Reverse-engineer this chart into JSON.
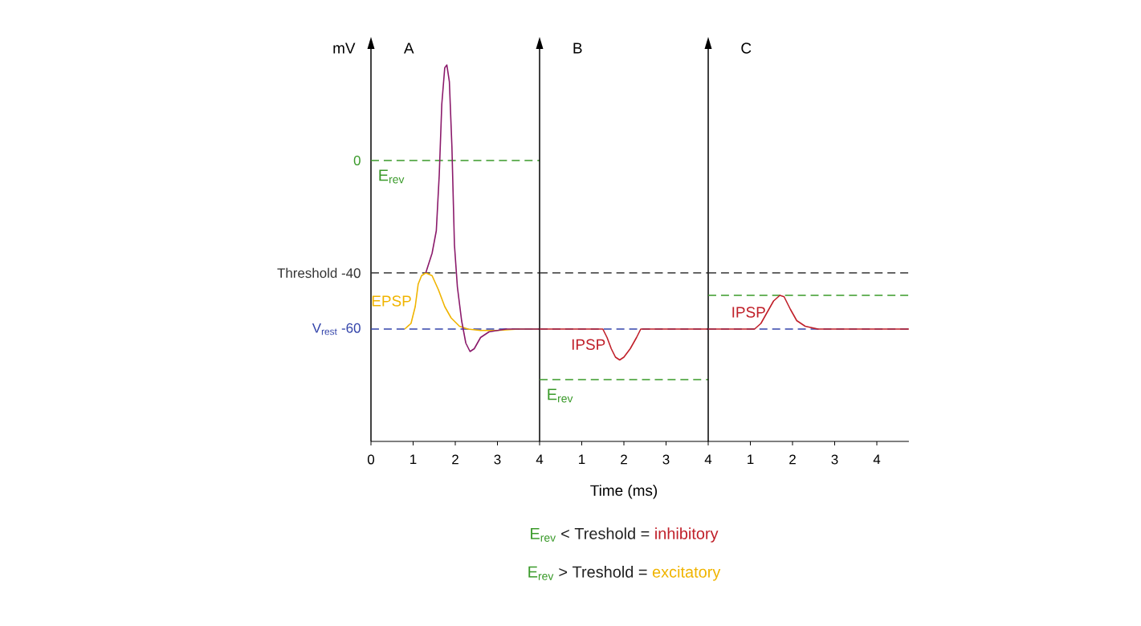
{
  "chart_data": [
    {
      "type": "line",
      "title": "A",
      "ylabel": "mV",
      "marker": "none",
      "xlim": [
        0,
        4
      ],
      "ylim": [
        -100,
        40
      ],
      "xticks": [
        0,
        1,
        2,
        3,
        4
      ],
      "yticks": [
        {
          "value": 0,
          "label": "0"
        },
        {
          "value": -40,
          "label": "Threshold -40"
        },
        {
          "value": -60,
          "label": "V$_{rest}$ -60"
        }
      ],
      "series": [
        {
          "name": "EPSP",
          "color": "#f0b400",
          "x": [
            0.8,
            0.95,
            1.05,
            1.12,
            1.2,
            1.3,
            1.45,
            1.6,
            1.75,
            1.9,
            2.1,
            2.3,
            2.6,
            3,
            3.5,
            4
          ],
          "values": [
            -60,
            -58,
            -52,
            -44,
            -41,
            -40,
            -41,
            -46,
            -52,
            -56,
            -59,
            -60,
            -60.5,
            -60.5,
            -60,
            -60
          ]
        },
        {
          "color": "#8b1a6b",
          "x": [
            1.3,
            1.45,
            1.55,
            1.62,
            1.68,
            1.75,
            1.8,
            1.86,
            1.92,
            1.98,
            2.05,
            2.15,
            2.25,
            2.35,
            2.45,
            2.6,
            2.8,
            3.2,
            3.6,
            4
          ],
          "values": [
            -40,
            -33,
            -25,
            -5,
            20,
            33,
            34,
            28,
            5,
            -30,
            -45,
            -57,
            -65,
            -68,
            -67,
            -63,
            -61,
            -60,
            -60,
            -60
          ]
        }
      ],
      "ref_lines": [
        {
          "axis": "y",
          "value": 0,
          "label": "E$_{rev}$",
          "color": "#3a9a2a",
          "line_style": "dashed"
        },
        {
          "axis": "y",
          "value": -40,
          "color": "#333333",
          "line_style": "dashed"
        },
        {
          "axis": "y",
          "value": -60,
          "color": "#3344aa",
          "line_style": "dashed"
        }
      ]
    },
    {
      "type": "line",
      "title": "B",
      "xlabel": "Time (ms)",
      "marker": "none",
      "xlim": [
        0,
        4
      ],
      "ylim": [
        -100,
        40
      ],
      "xticks": [
        1,
        2,
        3,
        4
      ],
      "tick_labels": "x",
      "series": [
        {
          "name": "IPSP",
          "color": "#c0202a",
          "x": [
            0,
            1.5,
            1.6,
            1.7,
            1.8,
            1.9,
            2.0,
            2.15,
            2.3,
            2.4,
            4
          ],
          "values": [
            -60,
            -60,
            -63,
            -67,
            -70,
            -71,
            -70,
            -67,
            -63,
            -60,
            -60
          ]
        }
      ],
      "ref_lines": [
        {
          "axis": "y",
          "value": -40,
          "color": "#333333",
          "line_style": "dashed"
        },
        {
          "axis": "y",
          "value": -60,
          "color": "#3344aa",
          "line_style": "dashed"
        },
        {
          "axis": "y",
          "value": -78,
          "label": "E$_{rev}$",
          "color": "#3a9a2a",
          "line_style": "dashed"
        }
      ],
      "annotations": [
        "E$_{rev}$",
        "< Treshold =",
        "inhibitory",
        "E$_{rev}$",
        "> Treshold =",
        "excitatory"
      ]
    },
    {
      "type": "line",
      "title": "C",
      "marker": "none",
      "xlim": [
        0,
        4.76
      ],
      "ylim": [
        -100,
        40
      ],
      "xticks": [
        1,
        2,
        3,
        4
      ],
      "tick_labels": "x",
      "series": [
        {
          "name": "IPSP",
          "color": "#c0202a",
          "x": [
            0,
            1.1,
            1.25,
            1.4,
            1.55,
            1.7,
            1.8,
            1.95,
            2.1,
            2.3,
            2.6,
            4.76
          ],
          "values": [
            -60,
            -60,
            -58,
            -54,
            -50,
            -48,
            -48.5,
            -53,
            -57,
            -59,
            -60,
            -60
          ]
        }
      ],
      "ref_lines": [
        {
          "axis": "y",
          "value": -40,
          "color": "#333333",
          "line_style": "dashed"
        },
        {
          "axis": "y",
          "value": -60,
          "color": "#3344aa",
          "line_style": "dashed"
        },
        {
          "axis": "y",
          "value": -48,
          "color": "#3a9a2a",
          "line_style": "dashed"
        }
      ]
    }
  ]
}
